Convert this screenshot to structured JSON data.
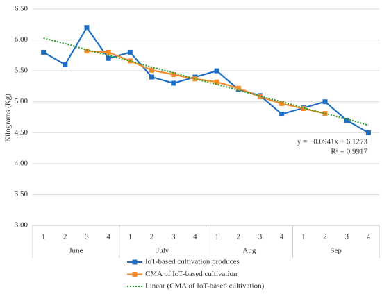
{
  "chart_data": {
    "type": "line",
    "y_label": "Kilograms (Kg)",
    "categories": [
      "1",
      "2",
      "3",
      "4",
      "1",
      "2",
      "3",
      "4",
      "1",
      "2",
      "3",
      "4",
      "1",
      "2",
      "3",
      "4"
    ],
    "groups": [
      "June",
      "July",
      "Aug",
      "Sep"
    ],
    "series": [
      {
        "name": "IoT-based cultivation produces",
        "color": "#1f6fc5",
        "style": "solid",
        "marker": true,
        "values": [
          5.8,
          5.6,
          6.2,
          5.7,
          5.8,
          5.4,
          5.3,
          5.4,
          5.5,
          5.2,
          5.1,
          4.8,
          4.9,
          5.0,
          4.7,
          4.5
        ]
      },
      {
        "name": "CMA of IoT-based cultivation",
        "color": "#f28c28",
        "style": "solid",
        "marker": true,
        "values": [
          null,
          null,
          5.82,
          5.8,
          5.66,
          5.51,
          5.44,
          5.37,
          5.32,
          5.22,
          5.08,
          4.97,
          4.89,
          4.81,
          null,
          null
        ]
      },
      {
        "name": "Linear (CMA of IoT-based cultivation)",
        "color": "#2e9a2e",
        "style": "dotted",
        "marker": false,
        "values": [
          6.03,
          5.94,
          5.84,
          5.75,
          5.66,
          5.56,
          5.47,
          5.37,
          5.28,
          5.19,
          5.09,
          5.0,
          4.9,
          4.81,
          4.72,
          4.62
        ]
      }
    ],
    "annotations": [
      "y = −0.0941x + 6.1273",
      "R² = 0.9917"
    ],
    "ylim": [
      3.0,
      6.5
    ],
    "yticks": [
      {
        "value": 3.0,
        "label": "3.00"
      },
      {
        "value": 3.5,
        "label": "3.50"
      },
      {
        "value": 4.0,
        "label": "4.00"
      },
      {
        "value": 4.5,
        "label": "4.50"
      },
      {
        "value": 5.0,
        "label": "5.00"
      },
      {
        "value": 5.5,
        "label": "5.50"
      },
      {
        "value": 6.0,
        "label": "6.00"
      },
      {
        "value": 6.5,
        "label": "6.50"
      }
    ],
    "grid": true
  }
}
